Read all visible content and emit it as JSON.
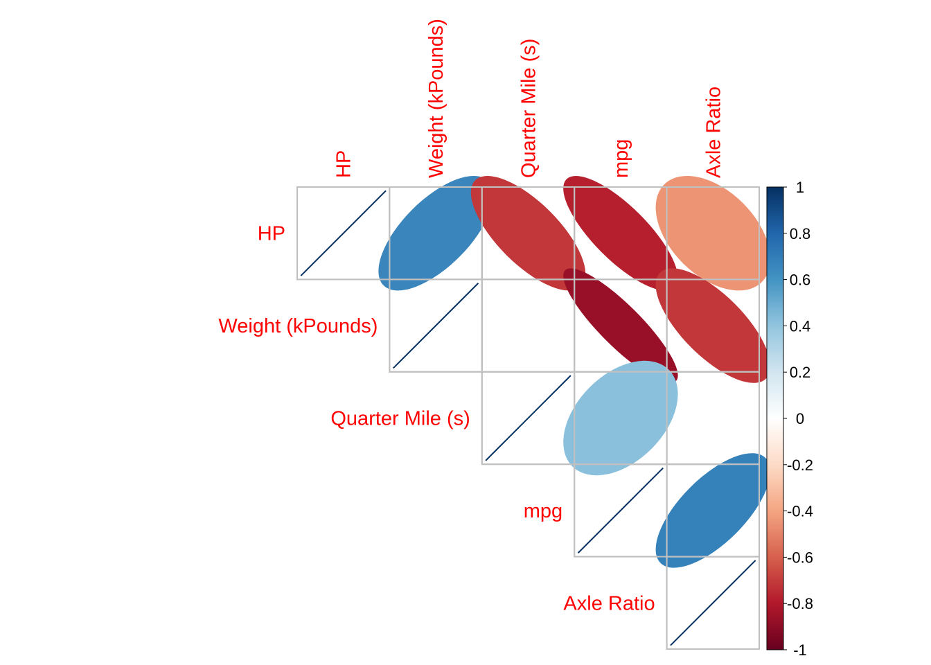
{
  "chart_data": {
    "type": "heatmap",
    "variables": [
      "HP",
      "Weight (kPounds)",
      "Quarter Mile (s)",
      "mpg",
      "Axle Ratio"
    ],
    "matrix": [
      [
        1.0,
        0.66,
        -0.71,
        -0.78,
        -0.45
      ],
      [
        0.66,
        1.0,
        null,
        -0.87,
        -0.71
      ],
      [
        -0.71,
        null,
        1.0,
        0.42,
        null
      ],
      [
        -0.78,
        -0.87,
        0.42,
        1.0,
        0.68
      ],
      [
        -0.45,
        -0.71,
        null,
        0.68,
        1.0
      ]
    ],
    "shape": "ellipse",
    "layout": "upper-triangle",
    "colorbar": {
      "range": [
        -1,
        1
      ],
      "ticks": [
        "1",
        "0.8",
        "0.6",
        "0.4",
        "0.2",
        "0",
        "-0.2",
        "-0.4",
        "-0.6",
        "-0.8",
        "-1"
      ],
      "colors": [
        "#67001F",
        "#B2182B",
        "#D6604D",
        "#F4A582",
        "#FDDBC7",
        "#FFFFFF",
        "#D1E5F0",
        "#92C5DE",
        "#4393C3",
        "#2166AC",
        "#053061"
      ]
    },
    "label_color": "#FF0000",
    "grid_color": "#C0C0C0"
  }
}
